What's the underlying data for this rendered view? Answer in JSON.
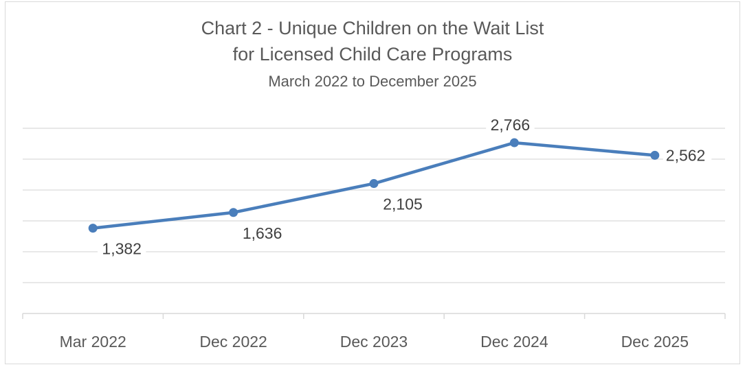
{
  "chart_data": {
    "type": "line",
    "title": "Chart 2 - Unique Children on the Wait List",
    "title_line2": "for Licensed Child Care Programs",
    "subtitle": "March 2022 to December 2025",
    "categories": [
      "Mar 2022",
      "Dec 2022",
      "Dec 2023",
      "Dec 2024",
      "Dec 2025"
    ],
    "series": [
      {
        "values": [
          1382,
          1636,
          2105,
          2766,
          2562
        ],
        "labels": [
          "1,382",
          "1,636",
          "2,105",
          "2,766",
          "2,562"
        ]
      }
    ],
    "xlabel": "",
    "ylabel": "",
    "ylim": [
      0,
      3000
    ],
    "gridlines": [
      0,
      500,
      1000,
      1500,
      2000,
      2500,
      3000
    ],
    "grid": true,
    "legend": "none",
    "colors": {
      "line": "#4a7ebb",
      "grid": "#d9d9d9",
      "text": "#595959"
    }
  }
}
